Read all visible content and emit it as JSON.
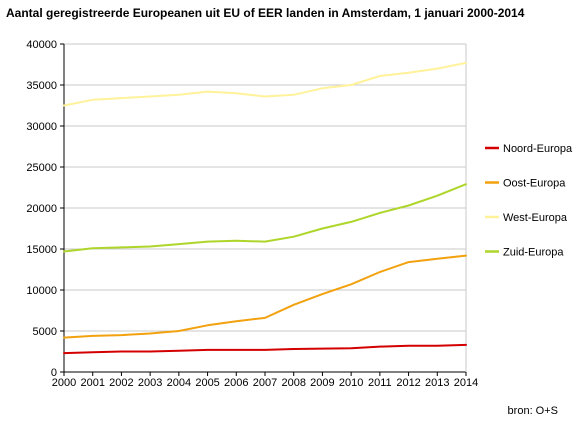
{
  "chart_data": {
    "type": "line",
    "title": "Aantal geregistreerde Europeanen uit EU of EER landen in Amsterdam, 1 januari 2000-2014",
    "xlabel": "",
    "ylabel": "",
    "x": [
      "2000",
      "2001",
      "2002",
      "2003",
      "2004",
      "2005",
      "2006",
      "2007",
      "2008",
      "2009",
      "2010",
      "2011",
      "2012",
      "2013",
      "2014"
    ],
    "ylim": [
      0,
      40000
    ],
    "yticks": [
      0,
      5000,
      10000,
      15000,
      20000,
      25000,
      30000,
      35000,
      40000
    ],
    "grid": "horizontal",
    "legend_position": "right",
    "series": [
      {
        "name": "Noord-Europa",
        "color": "#d40000",
        "values": [
          2300,
          2400,
          2500,
          2500,
          2600,
          2700,
          2700,
          2700,
          2800,
          2850,
          2900,
          3100,
          3200,
          3200,
          3300
        ]
      },
      {
        "name": "Oost-Europa",
        "color": "#f2a10f",
        "values": [
          4200,
          4400,
          4500,
          4700,
          5000,
          5700,
          6200,
          6600,
          8200,
          9500,
          10700,
          12200,
          13400,
          13800,
          14200
        ]
      },
      {
        "name": "West-Europa",
        "color": "#fff29a",
        "values": [
          32500,
          33200,
          33400,
          33600,
          33800,
          34200,
          34000,
          33600,
          33800,
          34600,
          35000,
          36100,
          36500,
          37000,
          37700
        ]
      },
      {
        "name": "Zuid-Europa",
        "color": "#aed62a",
        "values": [
          14700,
          15100,
          15200,
          15300,
          15600,
          15900,
          16000,
          15900,
          16500,
          17500,
          18300,
          19400,
          20300,
          21500,
          22900
        ]
      }
    ]
  },
  "source_note": "bron: O+S"
}
